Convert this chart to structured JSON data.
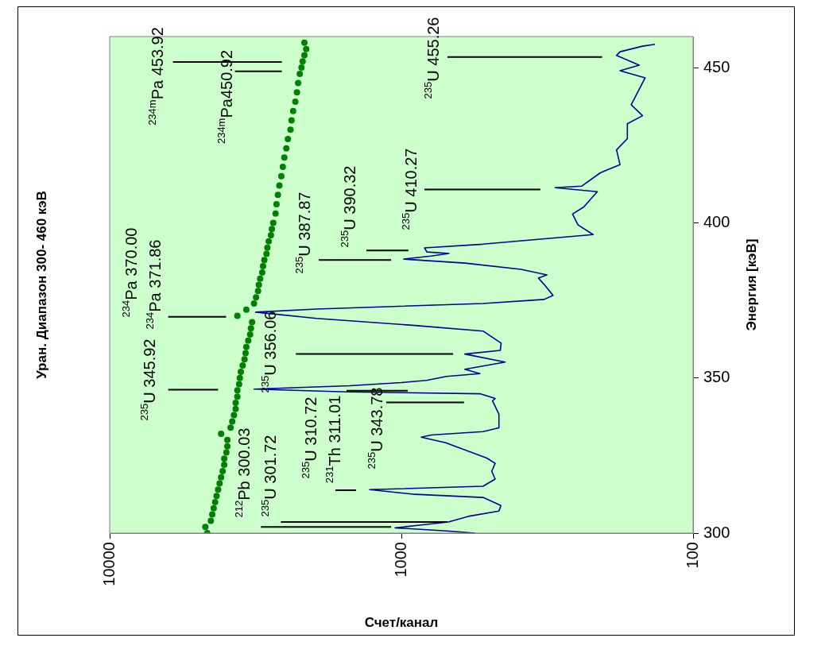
{
  "chart_data": {
    "type": "line",
    "title": "Уран. Диапазон 300- 460 кэВ",
    "xlabel": "Счет/канал",
    "ylabel": "Энергия [кэВ]",
    "xlim": [
      10000,
      100
    ],
    "xticks": [
      10000,
      1000,
      100
    ],
    "ylim": [
      300,
      460
    ],
    "yticks": [
      300,
      350,
      400,
      450
    ],
    "log": "x",
    "grid": false,
    "legend": false,
    "series": [
      {
        "type": "scatter",
        "marker": "circle",
        "color": "#008000",
        "values": [
          300,
          302,
          304,
          306,
          308,
          310,
          312,
          314,
          316,
          318,
          320,
          322,
          324,
          326,
          328,
          330,
          332,
          334,
          336,
          338,
          340,
          342,
          344,
          346,
          348,
          350,
          352,
          354,
          356,
          358,
          360,
          362,
          364,
          366,
          368,
          370,
          372,
          374,
          376,
          378,
          380,
          382,
          384,
          386,
          388,
          390,
          392,
          394,
          396,
          398,
          400,
          403,
          406,
          409,
          412,
          415,
          418,
          421,
          424,
          427,
          430,
          433,
          436,
          439,
          442,
          445,
          448,
          450,
          452,
          454,
          456,
          458
        ],
        "x": [
          4630,
          4700,
          4500,
          4450,
          4400,
          4350,
          4300,
          4250,
          4200,
          4150,
          4100,
          4050,
          4050,
          3980,
          3950,
          3950,
          4150,
          3850,
          3800,
          3750,
          3700,
          3700,
          3650,
          3650,
          3600,
          3580,
          3550,
          3500,
          3450,
          3420,
          3400,
          3350,
          3300,
          3280,
          3250,
          3650,
          3400,
          3200,
          3150,
          3100,
          3080,
          3050,
          3000,
          2980,
          2950,
          2900,
          2880,
          2850,
          2800,
          2780,
          2750,
          2700,
          2680,
          2650,
          2620,
          2580,
          2550,
          2520,
          2480,
          2450,
          2400,
          2380,
          2350,
          2310,
          2280,
          2260,
          2230,
          2200,
          2180,
          2150,
          2120,
          2150
        ]
      },
      {
        "marker": "none",
        "color": "#000000",
        "values": [
          451.8,
          451.8,
          null,
          448.8,
          448.8,
          null,
          453.4,
          453.4,
          null,
          410.7,
          410.7,
          null,
          391.1,
          391.1,
          null,
          388.0,
          388.0,
          null,
          369.7,
          369.7,
          null,
          357.7,
          357.7,
          null,
          346.2,
          346.2,
          null,
          342.1,
          342.1,
          null,
          313.8,
          313.8,
          null,
          345.9,
          345.9,
          null,
          302.0,
          302.0,
          null,
          303.6,
          303.6
        ],
        "x": [
          6070,
          2570,
          null,
          3720,
          2570,
          null,
          695,
          205,
          null,
          834,
          334,
          null,
          1318,
          946,
          null,
          1919,
          1084,
          null,
          6300,
          3990,
          null,
          2300,
          665,
          null,
          6300,
          4250,
          null,
          1127,
          610,
          null,
          1683,
          1430,
          null,
          1542,
          951,
          null,
          3030,
          1084,
          null,
          2590,
          695
        ]
      },
      {
        "marker": "none",
        "color": "#000099",
        "values": [
          300.0,
          300.7,
          301.7,
          302.5,
          303.6,
          305.4,
          307.1,
          308.9,
          311.5,
          312.5,
          314.0,
          315.1,
          317.4,
          319.9,
          322.5,
          324.2,
          329.1,
          330.9,
          331.6,
          332.7,
          333.9,
          338.3,
          342.6,
          343.4,
          344.9,
          345.5,
          346.4,
          347.5,
          348.5,
          349.2,
          350.5,
          351.4,
          352.8,
          355.1,
          357.7,
          358.9,
          361.2,
          365.1,
          366.9,
          369.2,
          371.2,
          372.2,
          374.0,
          375.3,
          376.6,
          380.1,
          382.2,
          383.2,
          385.0,
          387.0,
          388.3,
          389.3,
          390.1,
          390.6,
          391.9,
          393.1,
          396.2,
          399.3,
          402.8,
          405.1,
          410.0,
          411.3,
          411.8,
          416.1,
          418.7,
          423.5,
          427.1,
          431.9,
          434.5,
          438.0,
          446.7,
          449.0,
          450.8,
          453.9,
          455.1,
          456.9,
          457.5
        ],
        "x": [
          560,
          700,
          1050,
          880,
          690,
          590,
          463,
          456,
          525,
          900,
          1285,
          525,
          477,
          490,
          477,
          510,
          705,
          855,
          790,
          525,
          463,
          463,
          487,
          477,
          538,
          1540,
          3200,
          1500,
          1000,
          820,
          700,
          538,
          606,
          441,
          606,
          458,
          455,
          525,
          900,
          1955,
          3160,
          1955,
          525,
          324,
          302,
          324,
          339,
          317,
          389,
          606,
          982,
          790,
          687,
          818,
          833,
          525,
          220,
          248,
          259,
          237,
          213,
          297,
          241,
          208,
          178,
          183,
          168,
          168,
          149,
          163,
          146,
          178,
          153,
          183,
          178,
          149,
          135
        ]
      }
    ],
    "annotations": [
      "$^{234m}$Pa 453.92",
      "$^{234m}$Pa450.92",
      "$^{235}$U 455.26",
      "$^{235}$U 410.27",
      "$^{235}$U 390.32",
      "$^{235}$U 387.87",
      "$^{234}$Pa 370.00",
      "$^{234}$Pa 371.86",
      "$^{235}$U 356.06",
      "$^{235}$U 345.92",
      "$^{235}$U 343.78",
      "$^{231}$Th 311.01",
      "$^{235}$U 310.72",
      "$^{212}$Pb 300.03",
      "$^{235}$U 301.72"
    ]
  }
}
